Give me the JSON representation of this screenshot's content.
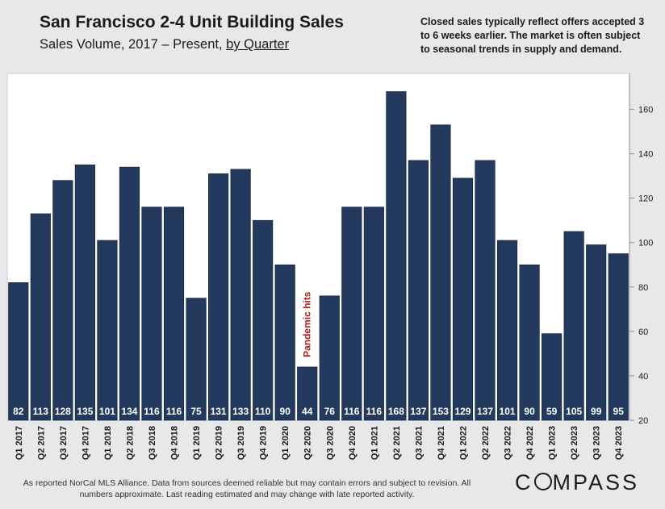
{
  "chart_data": {
    "type": "bar",
    "title": "San Francisco 2-4 Unit Building Sales",
    "subtitle_prefix": "Sales Volume, 2017 – Present, ",
    "subtitle_link": "by Quarter",
    "note": "Closed sales typically reflect offers accepted 3 to 6 weeks earlier. The market is often subject to seasonal trends in supply and demand.",
    "categories": [
      "Q1 2017",
      "Q2 2017",
      "Q3 2017",
      "Q4 2017",
      "Q1 2018",
      "Q2 2018",
      "Q3 2018",
      "Q4 2018",
      "Q1 2019",
      "Q2 2019",
      "Q3 2019",
      "Q4 2019",
      "Q1 2020",
      "Q2 2020",
      "Q3 2020",
      "Q4 2020",
      "Q1 2021",
      "Q2 2021",
      "Q3 2021",
      "Q4 2021",
      "Q1 2022",
      "Q2 2022",
      "Q3 2022",
      "Q4 2022",
      "Q1 2023",
      "Q2 2023",
      "Q3 2023",
      "Q4 2023"
    ],
    "values": [
      82,
      113,
      128,
      135,
      101,
      134,
      116,
      116,
      75,
      131,
      133,
      110,
      90,
      44,
      76,
      116,
      116,
      168,
      137,
      153,
      129,
      137,
      101,
      90,
      59,
      105,
      99,
      95
    ],
    "ylim": [
      20,
      170
    ],
    "yticks": [
      20,
      40,
      60,
      80,
      100,
      120,
      140,
      160
    ],
    "y_axis_side": "right",
    "grid": false,
    "bar_color": "#233a5e",
    "annotation": {
      "text": "Pandemic hits",
      "category": "Q2 2020",
      "color": "#b01c1c"
    }
  },
  "footer": {
    "source": "As reported NorCal MLS Alliance. Data from sources deemed reliable but may contain errors and subject to revision. All numbers approximate. Last reading estimated and may change with late reported activity.",
    "brand_before": "C",
    "brand_after": "MPASS"
  }
}
